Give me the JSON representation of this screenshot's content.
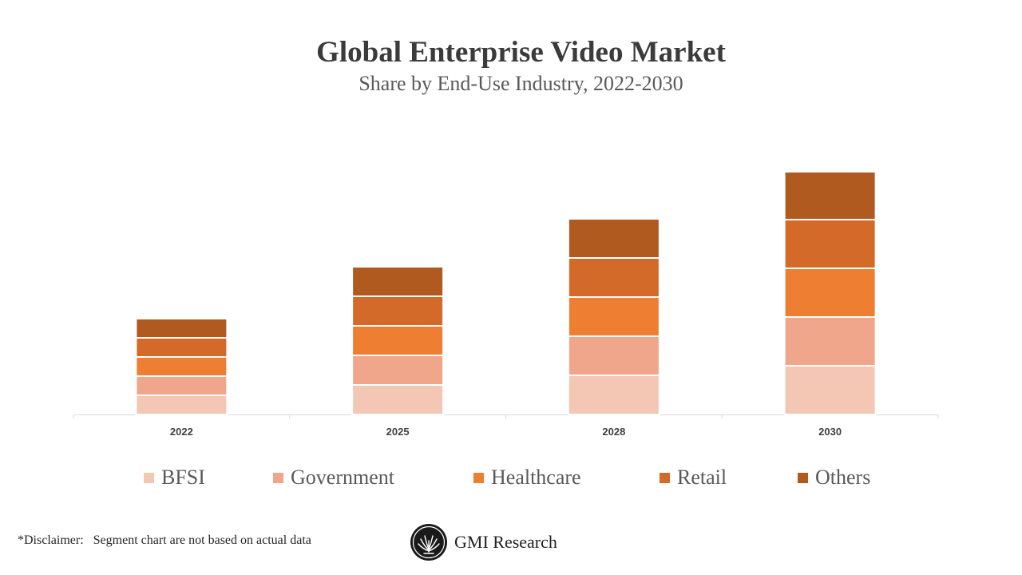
{
  "title": "Global Enterprise Video Market",
  "subtitle": "Share by End-Use Industry, 2022-2030",
  "disclaimer": "*Disclaimer:   Segment chart are not based on actual data",
  "brand": {
    "name": "GMI Research",
    "icon": "gmi-logo-icon"
  },
  "colors": {
    "BFSI": "#F4C6B4",
    "Government": "#EFA68A",
    "Healthcare": "#EE7E32",
    "Retail": "#D46A2A",
    "Others": "#B05A20"
  },
  "chart_data": {
    "type": "bar",
    "stacked": true,
    "title": "Global Enterprise Video Market",
    "subtitle": "Share by End-Use Industry, 2022-2030",
    "categories": [
      "2022",
      "2025",
      "2028",
      "2030"
    ],
    "series": [
      {
        "name": "BFSI",
        "values": [
          24,
          37,
          49,
          61
        ]
      },
      {
        "name": "Government",
        "values": [
          24,
          37,
          49,
          61
        ]
      },
      {
        "name": "Healthcare",
        "values": [
          24,
          37,
          49,
          61
        ]
      },
      {
        "name": "Retail",
        "values": [
          24,
          37,
          49,
          61
        ]
      },
      {
        "name": "Others",
        "values": [
          24,
          37,
          49,
          60
        ]
      }
    ],
    "ylim": [
      0,
      330
    ],
    "grid": false,
    "y_axis_visible": false,
    "legend_position": "bottom"
  }
}
